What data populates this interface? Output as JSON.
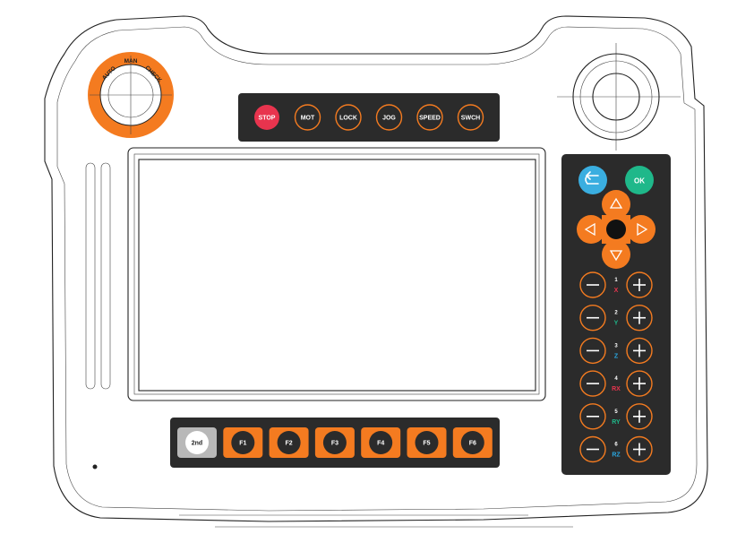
{
  "mode_switch": {
    "labels": [
      "AUTO",
      "MAN",
      "CHECK"
    ]
  },
  "top_keys": [
    {
      "label": "STOP",
      "name": "stop-button",
      "variant": "stop"
    },
    {
      "label": "MOT",
      "name": "mot-button",
      "variant": "outline"
    },
    {
      "label": "LOCK",
      "name": "lock-button",
      "variant": "outline"
    },
    {
      "label": "JOG",
      "name": "jog-button",
      "variant": "outline"
    },
    {
      "label": "SPEED",
      "name": "speed-button",
      "variant": "outline"
    },
    {
      "label": "SWCH",
      "name": "swch-button",
      "variant": "outline"
    }
  ],
  "bottom_keys": [
    {
      "label": "2nd",
      "name": "2nd-button",
      "variant": "white"
    },
    {
      "label": "F1",
      "name": "f1-button",
      "variant": "orange"
    },
    {
      "label": "F2",
      "name": "f2-button",
      "variant": "orange"
    },
    {
      "label": "F3",
      "name": "f3-button",
      "variant": "orange"
    },
    {
      "label": "F4",
      "name": "f4-button",
      "variant": "orange"
    },
    {
      "label": "F5",
      "name": "f5-button",
      "variant": "orange"
    },
    {
      "label": "F6",
      "name": "f6-button",
      "variant": "orange"
    }
  ],
  "nav": {
    "back_icon": "back-arrow-icon",
    "ok_label": "OK"
  },
  "axes": [
    {
      "num": "1",
      "name": "X",
      "color": "#e8344e"
    },
    {
      "num": "2",
      "name": "Y",
      "color": "#1fb88a"
    },
    {
      "num": "3",
      "name": "Z",
      "color": "#2aa7e0"
    },
    {
      "num": "4",
      "name": "RX",
      "color": "#e8344e"
    },
    {
      "num": "5",
      "name": "RY",
      "color": "#1fb88a"
    },
    {
      "num": "6",
      "name": "RZ",
      "color": "#2aa7e0"
    }
  ],
  "colors": {
    "panel": "#2b2b2b",
    "orange": "#f47b20",
    "stop": "#e8344e",
    "back": "#3aaee0",
    "ok": "#1fb88a"
  }
}
